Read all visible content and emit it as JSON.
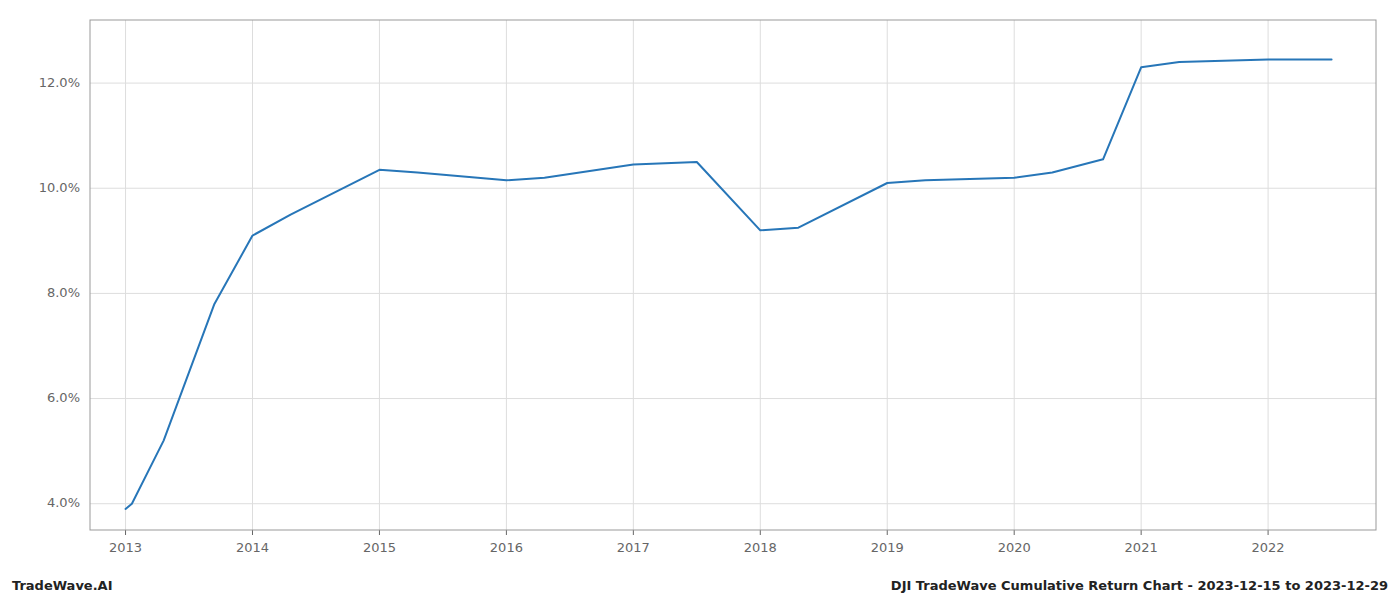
{
  "chart_data": {
    "type": "line",
    "x": [
      2013.0,
      2013.05,
      2013.3,
      2013.7,
      2014.0,
      2014.3,
      2015.0,
      2015.3,
      2016.0,
      2016.3,
      2017.0,
      2017.5,
      2018.0,
      2018.3,
      2019.0,
      2019.3,
      2020.0,
      2020.3,
      2020.7,
      2021.0,
      2021.3,
      2022.0,
      2022.5
    ],
    "values": [
      3.9,
      4.0,
      5.2,
      7.8,
      9.1,
      9.5,
      10.35,
      10.3,
      10.15,
      10.2,
      10.45,
      10.5,
      9.2,
      9.25,
      10.1,
      10.15,
      10.2,
      10.3,
      10.55,
      12.3,
      12.4,
      12.45,
      12.45
    ],
    "color": "#2776b8",
    "xlim": [
      2012.72,
      2022.85
    ],
    "ylim": [
      3.5,
      13.2
    ],
    "xticks": [
      2013,
      2014,
      2015,
      2016,
      2017,
      2018,
      2019,
      2020,
      2021,
      2022
    ],
    "yticks": [
      {
        "value": 4.0,
        "label": "4.0%"
      },
      {
        "value": 6.0,
        "label": "6.0%"
      },
      {
        "value": 8.0,
        "label": "8.0%"
      },
      {
        "value": 10.0,
        "label": "10.0%"
      },
      {
        "value": 12.0,
        "label": "12.0%"
      }
    ],
    "grid": true,
    "annotations": [
      "TradeWave.AI",
      "DJI TradeWave Cumulative Return Chart - 2023-12-15 to 2023-12-29"
    ]
  }
}
